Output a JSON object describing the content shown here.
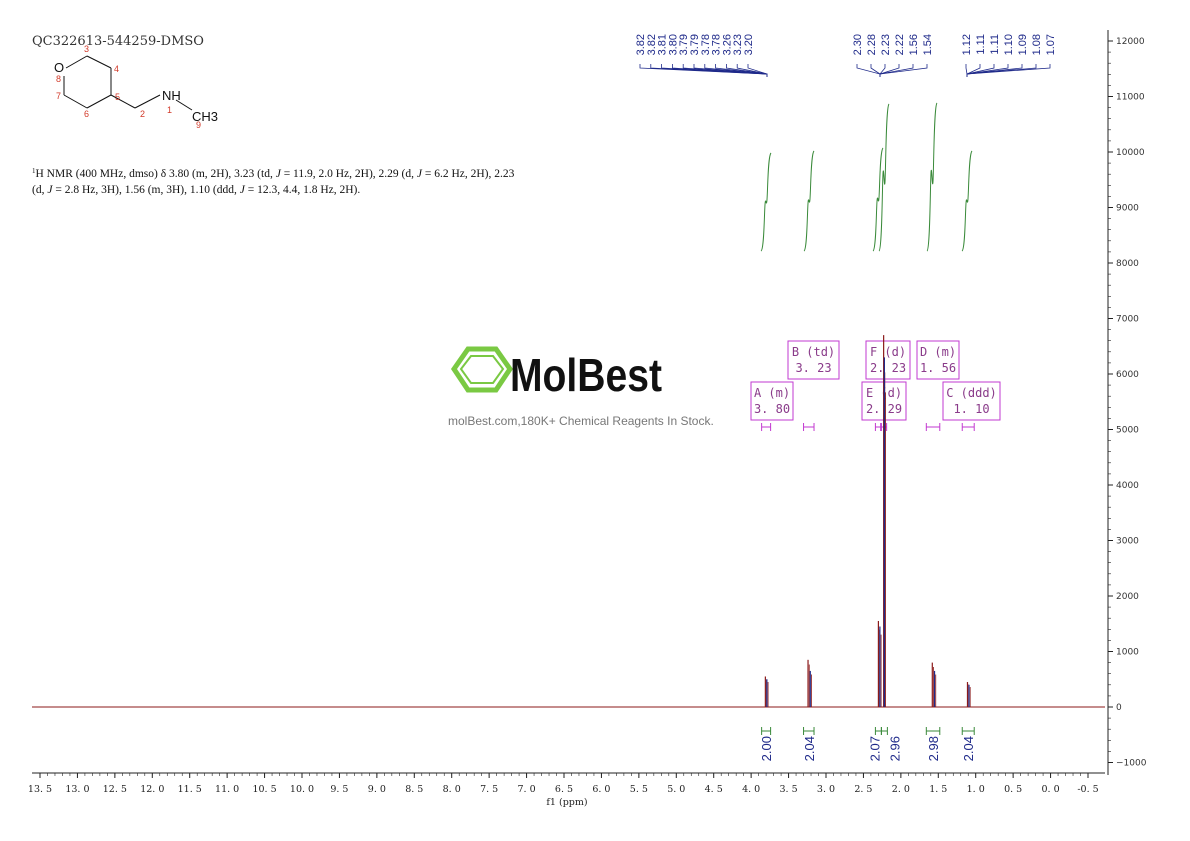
{
  "sample_id": "QC322613-544259-DMSO",
  "nmr_description": {
    "line1_sup": "1",
    "line1_main": "H NMR (400 MHz, dmso) δ 3.80 (m, 2H), 3.23 (td, ",
    "line1_j1": "J",
    "line1_a": " = 11.9, 2.0 Hz, 2H), 2.29 (d, ",
    "line1_j2": "J",
    "line1_b": " = 6.2 Hz, 2H), 2.23",
    "line2_a": "(d, ",
    "line2_j1": "J",
    "line2_b": " = 2.8 Hz, 3H), 1.56 (m, 3H), 1.10 (ddd, ",
    "line2_j2": "J",
    "line2_c": " = 12.3, 4.4, 1.8 Hz, 2H)."
  },
  "structure": {
    "atoms": {
      "O": "O",
      "NH": "NH",
      "CH3": "CH3"
    },
    "atom_numbers": [
      "1",
      "2",
      "3",
      "4",
      "5",
      "6",
      "7",
      "8",
      "9"
    ]
  },
  "watermark": {
    "brand": "MolBest",
    "tagline": "molBest.com,180K+ Chemical Reagents In Stock."
  },
  "colors": {
    "spectrum": "#8b1a1a",
    "spectrum_blue": "#1f2a8a",
    "integral_curve": "#3a8a3a",
    "multiplet_box": "#c23ad0",
    "watermark_green": "#7ac943",
    "label_blue": "#1f2a8a"
  },
  "chart_data": {
    "type": "line",
    "xlabel": "f1 (ppm)",
    "ylabel": "",
    "title": "",
    "xlim": [
      13.5,
      -0.5
    ],
    "ylim": [
      -1000,
      12000
    ],
    "x_ticks": [
      "13.5",
      "13.0",
      "12.5",
      "12.0",
      "11.5",
      "11.0",
      "10.5",
      "10.0",
      "9.5",
      "9.0",
      "8.5",
      "8.0",
      "7.5",
      "7.0",
      "6.5",
      "6.0",
      "5.5",
      "5.0",
      "4.5",
      "4.0",
      "3.5",
      "3.0",
      "2.5",
      "2.0",
      "1.5",
      "1.0",
      "0.5",
      "0.0",
      "-0.5"
    ],
    "y_ticks": [
      "-1000",
      "0",
      "1000",
      "2000",
      "3000",
      "4000",
      "5000",
      "6000",
      "7000",
      "8000",
      "9000",
      "10000",
      "11000",
      "12000"
    ],
    "peaks": [
      {
        "ppm": 3.81,
        "height": 550
      },
      {
        "ppm": 3.79,
        "height": 500
      },
      {
        "ppm": 3.24,
        "height": 850
      },
      {
        "ppm": 3.21,
        "height": 650
      },
      {
        "ppm": 2.3,
        "height": 1550
      },
      {
        "ppm": 2.28,
        "height": 1450
      },
      {
        "ppm": 2.23,
        "height": 6700
      },
      {
        "ppm": 2.22,
        "height": 6300
      },
      {
        "ppm": 1.58,
        "height": 800
      },
      {
        "ppm": 1.55,
        "height": 650
      },
      {
        "ppm": 1.11,
        "height": 450
      },
      {
        "ppm": 1.09,
        "height": 400
      }
    ],
    "peak_labels": [
      "3.82",
      "3.82",
      "3.81",
      "3.80",
      "3.79",
      "3.79",
      "3.78",
      "3.78",
      "3.26",
      "3.23",
      "3.20",
      "2.30",
      "2.28",
      "2.23",
      "2.22",
      "1.56",
      "1.54",
      "1.12",
      "1.11",
      "1.11",
      "1.10",
      "1.09",
      "1.08",
      "1.07"
    ],
    "integrals": [
      {
        "value": "2.00",
        "from": 3.86,
        "to": 3.74
      },
      {
        "value": "2.04",
        "from": 3.3,
        "to": 3.16
      },
      {
        "value": "2.07",
        "from": 2.34,
        "to": 2.26
      },
      {
        "value": "2.96",
        "from": 2.26,
        "to": 2.18
      },
      {
        "value": "2.98",
        "from": 1.66,
        "to": 1.48
      },
      {
        "value": "2.04",
        "from": 1.18,
        "to": 1.02
      }
    ],
    "multiplets": [
      {
        "letter": "A",
        "type": "(m)",
        "shift": "3.80"
      },
      {
        "letter": "B",
        "type": "(td)",
        "shift": "3.23"
      },
      {
        "letter": "F",
        "type": "(d)",
        "shift": "2.23"
      },
      {
        "letter": "D",
        "type": "(m)",
        "shift": "1.56"
      },
      {
        "letter": "E",
        "type": "(d)",
        "shift": "2.29"
      },
      {
        "letter": "C",
        "type": "(ddd)",
        "shift": "1.10"
      }
    ]
  }
}
